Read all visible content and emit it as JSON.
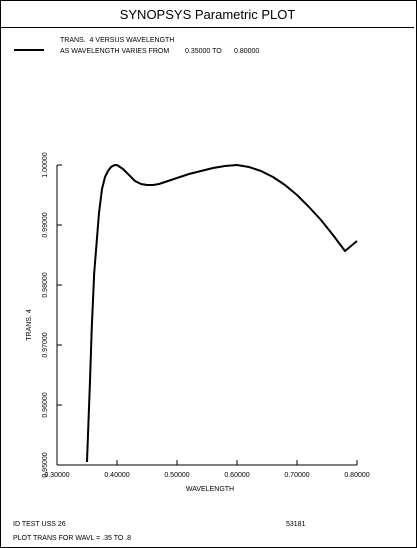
{
  "window_title": "SYNOPSYS Parametric PLOT",
  "legend": {
    "line1": "TRANS.  4 VERSUS WAVELENGTH",
    "line2_prefix": "AS WAVELENGTH VARIES FROM",
    "from_value": "0.35000 TO",
    "to_value": "0.80000"
  },
  "footer": {
    "id_text": "ID TEST USS 26",
    "number": "53181",
    "plot_text": "PLOT TRANS FOR WAVL = .35 TO .8"
  },
  "chart_data": {
    "type": "line",
    "title": "",
    "xlabel": "WAVELENGTH",
    "ylabel": "TRANS.  4",
    "xlim": [
      0.3,
      0.8
    ],
    "ylim": [
      0.95,
      1.0
    ],
    "x_ticks": [
      0.3,
      0.4,
      0.5,
      0.6,
      0.7,
      0.8
    ],
    "x_tick_labels": [
      "0.30000",
      "0.40000",
      "0.50000",
      "0.60000",
      "0.70000",
      "0.80000"
    ],
    "y_ticks": [
      0.95,
      0.96,
      0.97,
      0.98,
      0.99,
      1.0
    ],
    "y_tick_labels": [
      "0.95000",
      "0.96000",
      "0.97000",
      "0.98000",
      "0.99000",
      "1.00000"
    ],
    "grid": false,
    "legend_position": "top-left",
    "series": [
      {
        "name": "TRANS.  4 VERSUS WAVELENGTH",
        "color": "#000000",
        "x": [
          0.35,
          0.352,
          0.355,
          0.358,
          0.362,
          0.366,
          0.37,
          0.375,
          0.38,
          0.385,
          0.39,
          0.395,
          0.4,
          0.405,
          0.41,
          0.415,
          0.42,
          0.43,
          0.44,
          0.45,
          0.46,
          0.47,
          0.48,
          0.49,
          0.5,
          0.52,
          0.54,
          0.56,
          0.58,
          0.6,
          0.62,
          0.64,
          0.66,
          0.68,
          0.7,
          0.72,
          0.74,
          0.76,
          0.78,
          0.8
        ],
        "y": [
          0.9505,
          0.956,
          0.964,
          0.973,
          0.982,
          0.987,
          0.992,
          0.996,
          0.998,
          0.999,
          0.99966,
          0.99995,
          1.0,
          0.99966,
          0.99933,
          0.99883,
          0.99833,
          0.99733,
          0.99683,
          0.99667,
          0.99667,
          0.99683,
          0.99717,
          0.9975,
          0.99783,
          0.9985,
          0.999,
          0.9995,
          0.99983,
          1.0,
          0.99967,
          0.999,
          0.998,
          0.99667,
          0.995,
          0.993,
          0.99083,
          0.98833,
          0.98567,
          0.98733
        ]
      }
    ]
  }
}
